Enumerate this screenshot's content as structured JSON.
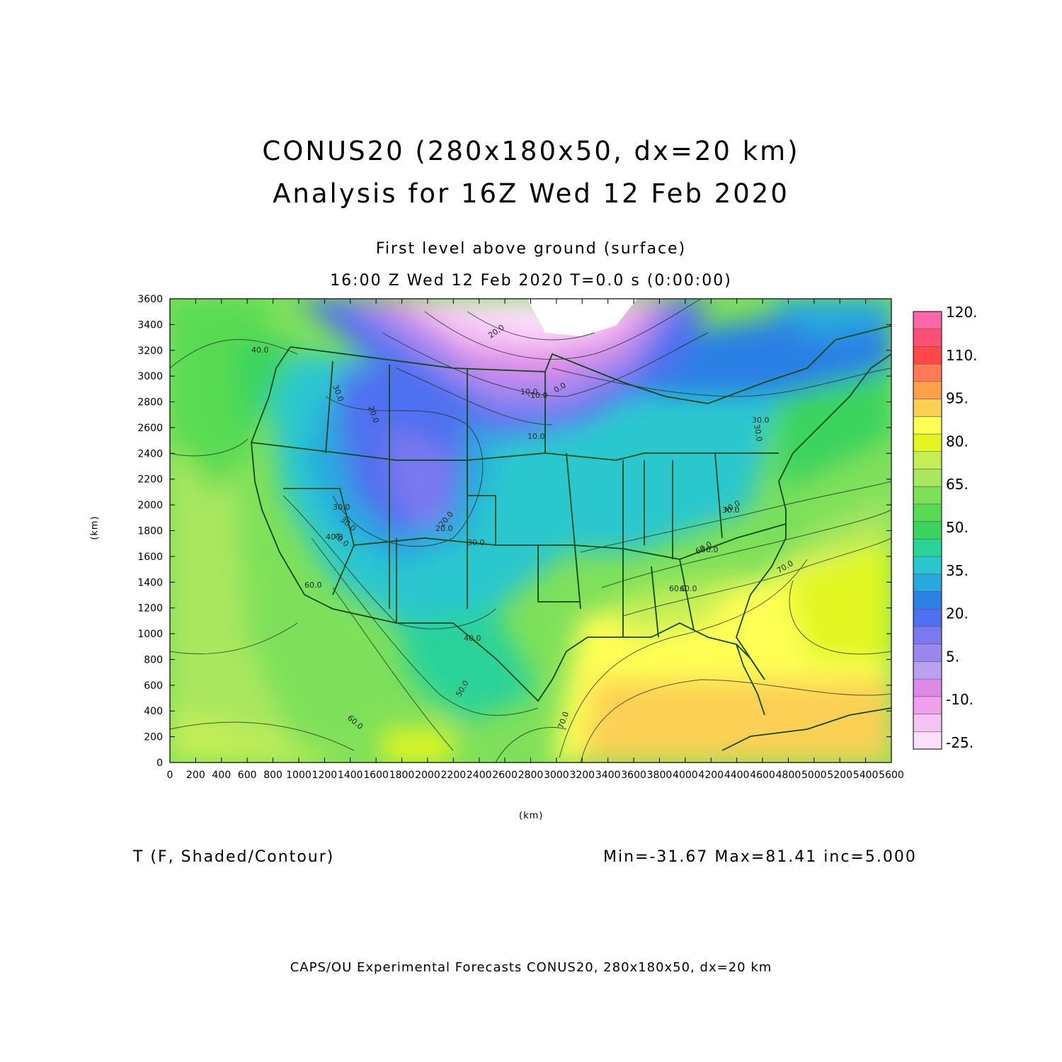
{
  "header": {
    "title_line1": "CONUS20 (280x180x50, dx=20 km)",
    "title_line2": "Analysis for 16Z Wed 12 Feb 2020",
    "subtitle_line1": "First level above ground (surface)",
    "subtitle_line2": "16:00 Z Wed 12 Feb 2020    T=0.0 s (0:00:00)"
  },
  "axes": {
    "x_label": "(km)",
    "y_label": "(km)",
    "x_ticks": [
      "0",
      "200",
      "400",
      "600",
      "800",
      "1000",
      "1200",
      "1400",
      "1600",
      "1800",
      "2000",
      "2200",
      "2400",
      "2600",
      "2800",
      "3000",
      "3200",
      "3400",
      "3600",
      "3800",
      "4000",
      "4200",
      "4400",
      "4600",
      "4800",
      "5000",
      "5200",
      "5400",
      "5600"
    ],
    "y_ticks": [
      "0",
      "200",
      "400",
      "600",
      "800",
      "1000",
      "1200",
      "1400",
      "1600",
      "1800",
      "2000",
      "2200",
      "2400",
      "2600",
      "2800",
      "3000",
      "3200",
      "3400",
      "3600"
    ],
    "x_range": [
      0,
      5600
    ],
    "y_range": [
      0,
      3600
    ]
  },
  "colorbar": {
    "labels": [
      "120.",
      "110.",
      "95.",
      "80.",
      "65.",
      "50.",
      "35.",
      "20.",
      "5.",
      "-10.",
      "-25."
    ],
    "colors": [
      "#ff66aa",
      "#ff4f77",
      "#ff4848",
      "#ff7a55",
      "#fca04a",
      "#fcd055",
      "#ffff55",
      "#e2f720",
      "#c4ee55",
      "#a9e75e",
      "#7ee05a",
      "#58db52",
      "#3ad45e",
      "#2ad39a",
      "#2ac7cf",
      "#27a8df",
      "#2c7fe4",
      "#4f6ff0",
      "#7c78f0",
      "#9b87f0",
      "#b9a1f0",
      "#dd8ae6",
      "#ef9fee",
      "#f5c3f5",
      "#fce0fa"
    ]
  },
  "contour_labels": [
    "20.0",
    "10.0",
    "-10.0",
    "0.0",
    "10.0",
    "30.0",
    "20.0",
    "30.0",
    "40.0",
    "30.0",
    "20.0",
    "30.0",
    "40.0",
    "60.0",
    "50.0",
    "40.0",
    "60.0",
    "70.0",
    "60.0",
    "30.0",
    "40.0",
    "50.0",
    "70.0",
    "60.0",
    "60.0",
    "40.0",
    "20.0",
    "30.0",
    "30.0"
  ],
  "footer": {
    "variable": "T (F, Shaded/Contour)",
    "stats": "Min=-31.67  Max=81.41  inc=5.000",
    "credit": "CAPS/OU Experimental Forecasts  CONUS20, 280x180x50, dx=20 km"
  }
}
